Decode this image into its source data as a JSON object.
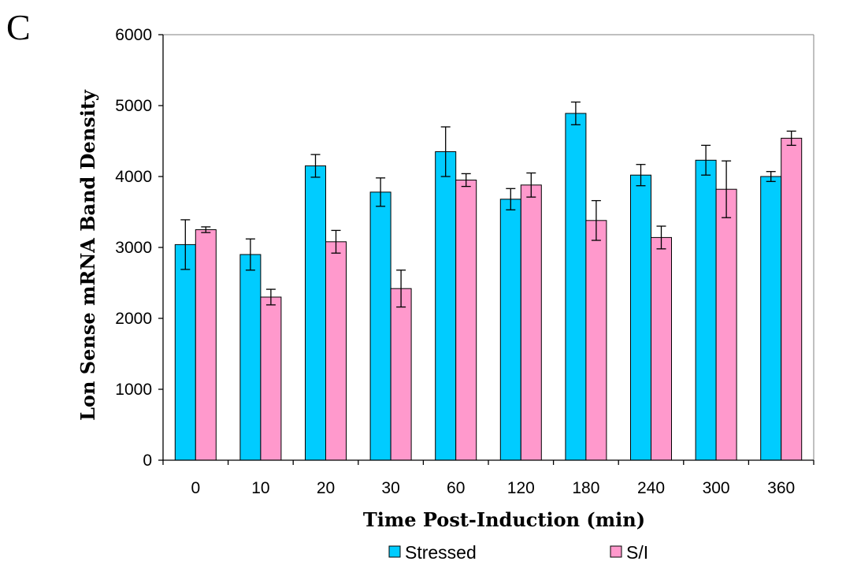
{
  "panel_label": "C",
  "colors": {
    "stressed": "#00CCFF",
    "si": "#FF99CC",
    "axis": "#000000"
  },
  "chart_data": {
    "type": "bar",
    "title": "",
    "xlabel": "Time Post-Induction  (min)",
    "ylabel": "Lon Sense mRNA  Band Density",
    "ylim": [
      0,
      6000
    ],
    "yticks": [
      0,
      1000,
      2000,
      3000,
      4000,
      5000,
      6000
    ],
    "categories": [
      "0",
      "10",
      "20",
      "30",
      "60",
      "120",
      "180",
      "240",
      "300",
      "360"
    ],
    "series": [
      {
        "name": "Stressed",
        "values": [
          3040,
          2900,
          4150,
          3780,
          4350,
          3680,
          4890,
          4020,
          4230,
          4000
        ],
        "errors": [
          350,
          220,
          160,
          200,
          350,
          150,
          160,
          150,
          210,
          70
        ]
      },
      {
        "name": "S/I",
        "values": [
          3250,
          2300,
          3080,
          2420,
          3950,
          3880,
          3380,
          3140,
          3820,
          4540
        ],
        "errors": [
          40,
          110,
          160,
          260,
          90,
          170,
          280,
          160,
          400,
          100
        ]
      }
    ],
    "grid": false,
    "legend_position": "bottom"
  }
}
